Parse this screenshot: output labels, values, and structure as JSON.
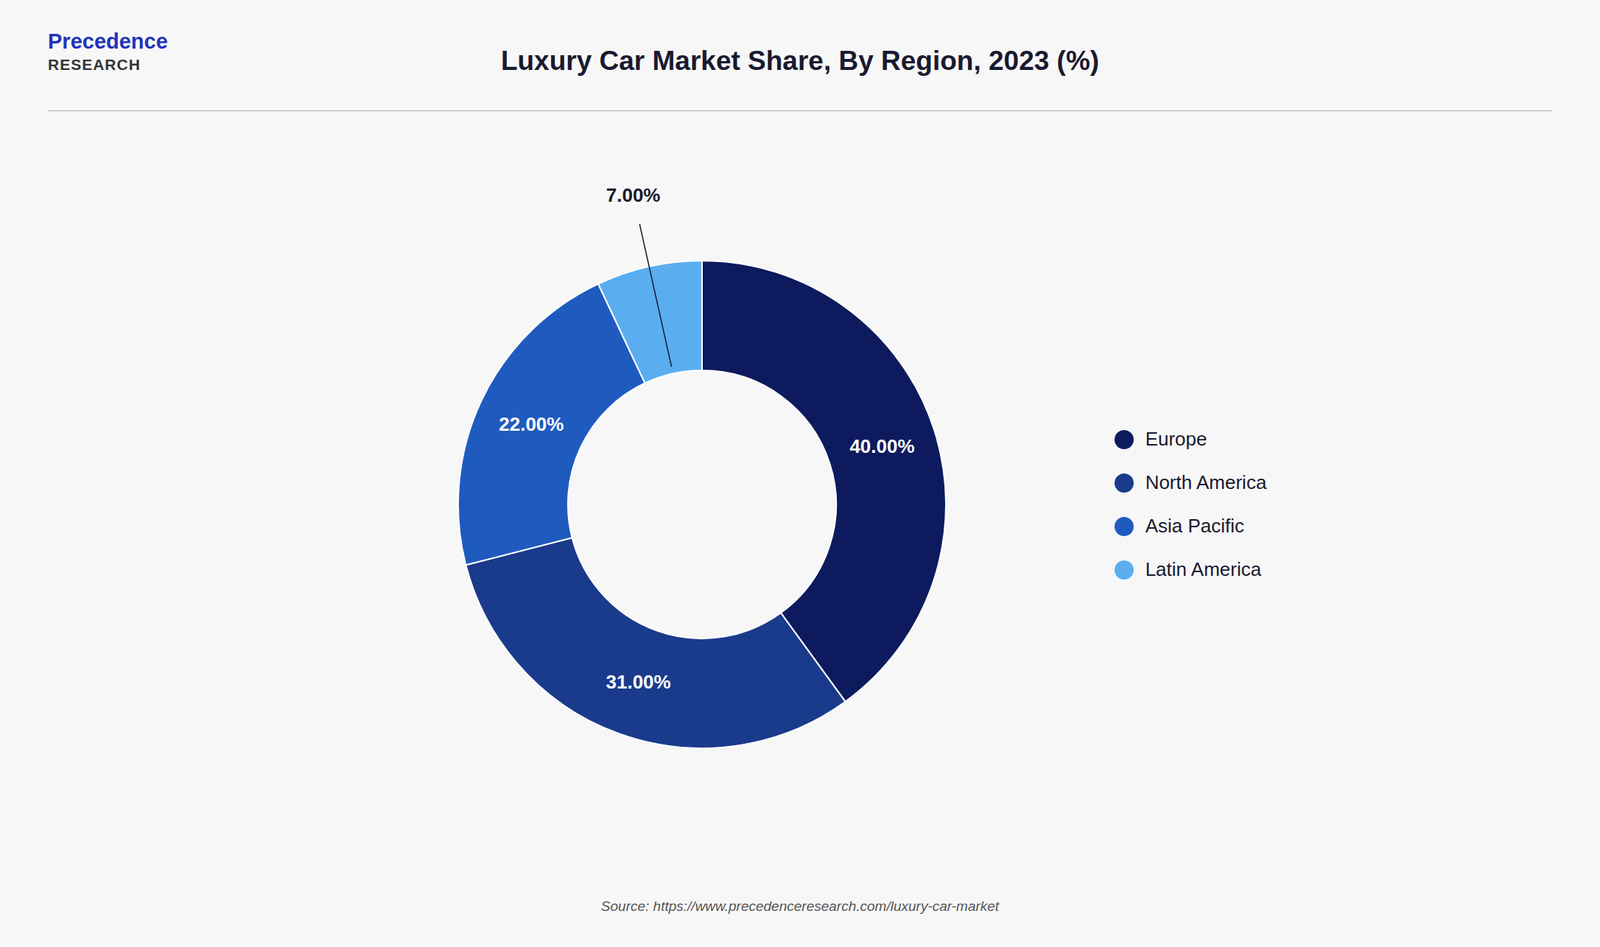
{
  "chart_data": {
    "type": "pie",
    "title": "Luxury Car Market Share, By Region, 2023 (%)",
    "categories": [
      "Europe",
      "North America",
      "Asia Pacific",
      "Latin America"
    ],
    "values": [
      40.0,
      31.0,
      22.0,
      7.0
    ],
    "value_labels": [
      "40.00%",
      "31.00%",
      "22.00%",
      "7.00%"
    ],
    "colors": [
      "#0d1b5e",
      "#1a3a8c",
      "#1f5bbf",
      "#5aaef0"
    ],
    "data_labels": true,
    "legend": "right",
    "annotations": [
      "Precedence",
      "RESEARCH",
      "Source: https://www.precedenceresearch.com/luxury-car-market"
    ]
  }
}
